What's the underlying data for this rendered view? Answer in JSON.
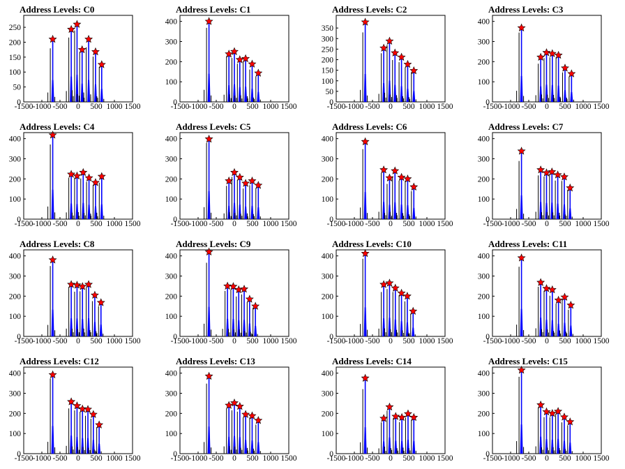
{
  "colors": {
    "hist_fill": "#0000ff",
    "hist_line": "#000000",
    "marker": "#ff0000",
    "marker_edge": "#000000"
  },
  "chart_data": [
    {
      "type": "bar",
      "title": "Address Levels: C0",
      "xlim": [
        -1500,
        1500
      ],
      "ylim": [
        0,
        290
      ],
      "xticks": [
        -1500,
        -1000,
        -500,
        0,
        500,
        1000,
        1500
      ],
      "yticks": [
        0,
        50,
        100,
        150,
        200,
        250
      ],
      "peaks": [
        {
          "x": -700,
          "y": 210
        },
        {
          "x": -190,
          "y": 243
        },
        {
          "x": -30,
          "y": 260
        },
        {
          "x": 110,
          "y": 175
        },
        {
          "x": 290,
          "y": 210
        },
        {
          "x": 480,
          "y": 168
        },
        {
          "x": 650,
          "y": 125
        }
      ]
    },
    {
      "type": "bar",
      "title": "Address Levels: C1",
      "xlim": [
        -1500,
        1500
      ],
      "ylim": [
        0,
        430
      ],
      "xticks": [
        -1500,
        -1000,
        -500,
        0,
        500,
        1000,
        1500
      ],
      "yticks": [
        0,
        100,
        200,
        300,
        400
      ],
      "peaks": [
        {
          "x": -700,
          "y": 400
        },
        {
          "x": -150,
          "y": 238
        },
        {
          "x": 0,
          "y": 250
        },
        {
          "x": 150,
          "y": 210
        },
        {
          "x": 310,
          "y": 215
        },
        {
          "x": 490,
          "y": 188
        },
        {
          "x": 660,
          "y": 143
        }
      ]
    },
    {
      "type": "bar",
      "title": "Address Levels: C2",
      "xlim": [
        -1500,
        1500
      ],
      "ylim": [
        0,
        410
      ],
      "xticks": [
        -1500,
        -1000,
        -500,
        0,
        500,
        1000,
        1500
      ],
      "yticks": [
        0,
        50,
        100,
        150,
        200,
        250,
        300,
        350
      ],
      "peaks": [
        {
          "x": -700,
          "y": 378
        },
        {
          "x": -190,
          "y": 255
        },
        {
          "x": -30,
          "y": 288
        },
        {
          "x": 120,
          "y": 232
        },
        {
          "x": 300,
          "y": 212
        },
        {
          "x": 470,
          "y": 178
        },
        {
          "x": 640,
          "y": 148
        }
      ]
    },
    {
      "type": "bar",
      "title": "Address Levels: C3",
      "xlim": [
        -1500,
        1500
      ],
      "ylim": [
        0,
        430
      ],
      "xticks": [
        -1500,
        -1000,
        -500,
        0,
        500,
        1000,
        1500
      ],
      "yticks": [
        0,
        100,
        200,
        300,
        400
      ],
      "peaks": [
        {
          "x": -700,
          "y": 368
        },
        {
          "x": -170,
          "y": 222
        },
        {
          "x": -10,
          "y": 245
        },
        {
          "x": 150,
          "y": 240
        },
        {
          "x": 320,
          "y": 232
        },
        {
          "x": 500,
          "y": 168
        },
        {
          "x": 680,
          "y": 140
        }
      ]
    },
    {
      "type": "bar",
      "title": "Address Levels: C4",
      "xlim": [
        -1500,
        1500
      ],
      "ylim": [
        0,
        430
      ],
      "xticks": [
        -1500,
        -1000,
        -500,
        0,
        500,
        1000,
        1500
      ],
      "yticks": [
        0,
        100,
        200,
        300,
        400
      ],
      "peaks": [
        {
          "x": -700,
          "y": 418
        },
        {
          "x": -190,
          "y": 223
        },
        {
          "x": -30,
          "y": 215
        },
        {
          "x": 140,
          "y": 232
        },
        {
          "x": 300,
          "y": 205
        },
        {
          "x": 480,
          "y": 182
        },
        {
          "x": 650,
          "y": 212
        }
      ]
    },
    {
      "type": "bar",
      "title": "Address Levels: C5",
      "xlim": [
        -1500,
        1500
      ],
      "ylim": [
        0,
        430
      ],
      "xticks": [
        -1500,
        -1000,
        -500,
        0,
        500,
        1000,
        1500
      ],
      "yticks": [
        0,
        100,
        200,
        300,
        400
      ],
      "peaks": [
        {
          "x": -700,
          "y": 398
        },
        {
          "x": -150,
          "y": 190
        },
        {
          "x": 0,
          "y": 232
        },
        {
          "x": 150,
          "y": 208
        },
        {
          "x": 310,
          "y": 178
        },
        {
          "x": 490,
          "y": 190
        },
        {
          "x": 660,
          "y": 168
        }
      ]
    },
    {
      "type": "bar",
      "title": "Address Levels: C6",
      "xlim": [
        -1500,
        1500
      ],
      "ylim": [
        0,
        430
      ],
      "xticks": [
        -1500,
        -1000,
        -500,
        0,
        500,
        1000,
        1500
      ],
      "yticks": [
        0,
        100,
        200,
        300,
        400
      ],
      "peaks": [
        {
          "x": -700,
          "y": 385
        },
        {
          "x": -190,
          "y": 245
        },
        {
          "x": -30,
          "y": 205
        },
        {
          "x": 120,
          "y": 240
        },
        {
          "x": 300,
          "y": 208
        },
        {
          "x": 470,
          "y": 200
        },
        {
          "x": 640,
          "y": 160
        }
      ]
    },
    {
      "type": "bar",
      "title": "Address Levels: C7",
      "xlim": [
        -1500,
        1500
      ],
      "ylim": [
        0,
        430
      ],
      "xticks": [
        -1500,
        -1000,
        -500,
        0,
        500,
        1000,
        1500
      ],
      "yticks": [
        0,
        100,
        200,
        300,
        400
      ],
      "peaks": [
        {
          "x": -700,
          "y": 338
        },
        {
          "x": -170,
          "y": 245
        },
        {
          "x": -10,
          "y": 230
        },
        {
          "x": 140,
          "y": 235
        },
        {
          "x": 300,
          "y": 220
        },
        {
          "x": 480,
          "y": 210
        },
        {
          "x": 640,
          "y": 155
        }
      ]
    },
    {
      "type": "bar",
      "title": "Address Levels: C8",
      "xlim": [
        -1500,
        1500
      ],
      "ylim": [
        0,
        430
      ],
      "xticks": [
        -1500,
        -1000,
        -500,
        0,
        500,
        1000,
        1500
      ],
      "yticks": [
        0,
        100,
        200,
        300,
        400
      ],
      "peaks": [
        {
          "x": -700,
          "y": 380
        },
        {
          "x": -190,
          "y": 258
        },
        {
          "x": -30,
          "y": 255
        },
        {
          "x": 120,
          "y": 248
        },
        {
          "x": 290,
          "y": 258
        },
        {
          "x": 460,
          "y": 205
        },
        {
          "x": 630,
          "y": 168
        }
      ]
    },
    {
      "type": "bar",
      "title": "Address Levels: C9",
      "xlim": [
        -1500,
        1500
      ],
      "ylim": [
        0,
        430
      ],
      "xticks": [
        -1500,
        -1000,
        -500,
        0,
        500,
        1000,
        1500
      ],
      "yticks": [
        0,
        100,
        200,
        300,
        400
      ],
      "peaks": [
        {
          "x": -700,
          "y": 420
        },
        {
          "x": -190,
          "y": 250
        },
        {
          "x": -30,
          "y": 248
        },
        {
          "x": 120,
          "y": 232
        },
        {
          "x": 270,
          "y": 235
        },
        {
          "x": 420,
          "y": 185
        },
        {
          "x": 580,
          "y": 150
        }
      ]
    },
    {
      "type": "bar",
      "title": "Address Levels: C10",
      "xlim": [
        -1500,
        1500
      ],
      "ylim": [
        0,
        430
      ],
      "xticks": [
        -1500,
        -1000,
        -500,
        0,
        500,
        1000,
        1500
      ],
      "yticks": [
        0,
        100,
        200,
        300,
        400
      ],
      "peaks": [
        {
          "x": -700,
          "y": 412
        },
        {
          "x": -190,
          "y": 258
        },
        {
          "x": -30,
          "y": 265
        },
        {
          "x": 130,
          "y": 240
        },
        {
          "x": 300,
          "y": 215
        },
        {
          "x": 460,
          "y": 200
        },
        {
          "x": 620,
          "y": 125
        }
      ]
    },
    {
      "type": "bar",
      "title": "Address Levels: C11",
      "xlim": [
        -1500,
        1500
      ],
      "ylim": [
        0,
        430
      ],
      "xticks": [
        -1500,
        -1000,
        -500,
        0,
        500,
        1000,
        1500
      ],
      "yticks": [
        0,
        100,
        200,
        300,
        400
      ],
      "peaks": [
        {
          "x": -700,
          "y": 390
        },
        {
          "x": -170,
          "y": 268
        },
        {
          "x": -10,
          "y": 238
        },
        {
          "x": 150,
          "y": 232
        },
        {
          "x": 320,
          "y": 180
        },
        {
          "x": 490,
          "y": 195
        },
        {
          "x": 660,
          "y": 155
        }
      ]
    },
    {
      "type": "bar",
      "title": "Address Levels: C12",
      "xlim": [
        -1500,
        1500
      ],
      "ylim": [
        0,
        430
      ],
      "xticks": [
        -1500,
        -1000,
        -500,
        0,
        500,
        1000,
        1500
      ],
      "yticks": [
        0,
        100,
        200,
        300,
        400
      ],
      "peaks": [
        {
          "x": -700,
          "y": 392
        },
        {
          "x": -190,
          "y": 258
        },
        {
          "x": -30,
          "y": 238
        },
        {
          "x": 120,
          "y": 222
        },
        {
          "x": 270,
          "y": 220
        },
        {
          "x": 420,
          "y": 195
        },
        {
          "x": 580,
          "y": 143
        }
      ]
    },
    {
      "type": "bar",
      "title": "Address Levels: C13",
      "xlim": [
        -1500,
        1500
      ],
      "ylim": [
        0,
        430
      ],
      "xticks": [
        -1500,
        -1000,
        -500,
        0,
        500,
        1000,
        1500
      ],
      "yticks": [
        0,
        100,
        200,
        300,
        400
      ],
      "peaks": [
        {
          "x": -700,
          "y": 385
        },
        {
          "x": -150,
          "y": 240
        },
        {
          "x": 0,
          "y": 252
        },
        {
          "x": 150,
          "y": 235
        },
        {
          "x": 310,
          "y": 195
        },
        {
          "x": 490,
          "y": 188
        },
        {
          "x": 660,
          "y": 165
        }
      ]
    },
    {
      "type": "bar",
      "title": "Address Levels: C14",
      "xlim": [
        -1500,
        1500
      ],
      "ylim": [
        0,
        430
      ],
      "xticks": [
        -1500,
        -1000,
        -500,
        0,
        500,
        1000,
        1500
      ],
      "yticks": [
        0,
        100,
        200,
        300,
        400
      ],
      "peaks": [
        {
          "x": -700,
          "y": 375
        },
        {
          "x": -190,
          "y": 175
        },
        {
          "x": -30,
          "y": 232
        },
        {
          "x": 140,
          "y": 185
        },
        {
          "x": 310,
          "y": 180
        },
        {
          "x": 480,
          "y": 198
        },
        {
          "x": 640,
          "y": 180
        }
      ]
    },
    {
      "type": "bar",
      "title": "Address Levels: C15",
      "xlim": [
        -1500,
        1500
      ],
      "ylim": [
        0,
        430
      ],
      "xticks": [
        -1500,
        -1000,
        -500,
        0,
        500,
        1000,
        1500
      ],
      "yticks": [
        0,
        100,
        200,
        300,
        400
      ],
      "peaks": [
        {
          "x": -700,
          "y": 415
        },
        {
          "x": -170,
          "y": 242
        },
        {
          "x": -10,
          "y": 208
        },
        {
          "x": 150,
          "y": 200
        },
        {
          "x": 310,
          "y": 210
        },
        {
          "x": 480,
          "y": 182
        },
        {
          "x": 640,
          "y": 158
        }
      ]
    }
  ]
}
